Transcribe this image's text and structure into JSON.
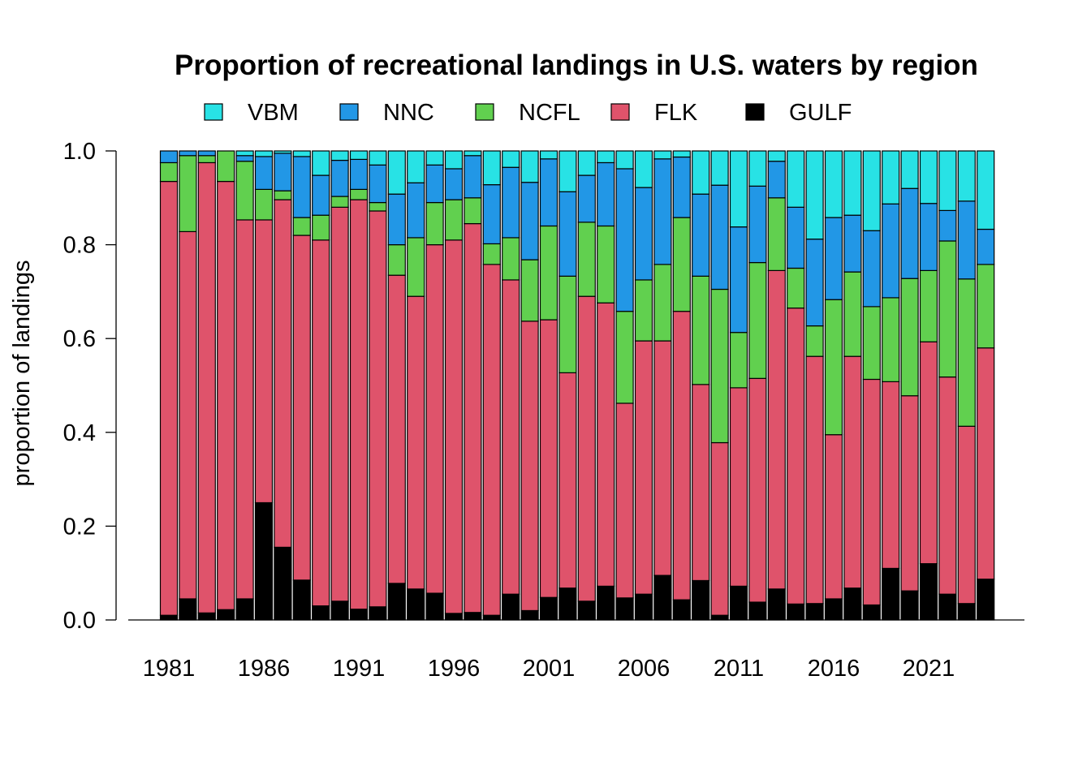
{
  "chart_data": {
    "type": "bar",
    "stacked": true,
    "title": "Proportion of recreational landings in U.S. waters by region",
    "xlabel": "",
    "ylabel": "proportion of landings",
    "ylim": [
      0,
      1
    ],
    "yticks": [
      "0.0",
      "0.2",
      "0.4",
      "0.6",
      "0.8",
      "1.0"
    ],
    "xtick_labels": [
      "1981",
      "1986",
      "1991",
      "1996",
      "2001",
      "2006",
      "2011",
      "2016",
      "2021"
    ],
    "legend_position": "top",
    "grid": false,
    "categories": [
      1981,
      1982,
      1983,
      1984,
      1985,
      1986,
      1987,
      1988,
      1989,
      1990,
      1991,
      1992,
      1993,
      1994,
      1995,
      1996,
      1997,
      1998,
      1999,
      2000,
      2001,
      2002,
      2003,
      2004,
      2005,
      2006,
      2007,
      2008,
      2009,
      2010,
      2011,
      2012,
      2013,
      2014,
      2015,
      2016,
      2017,
      2018,
      2019,
      2020,
      2021,
      2022,
      2023,
      2024
    ],
    "series": [
      {
        "name": "GULF",
        "color": "#000000",
        "values": [
          0.01,
          0.045,
          0.015,
          0.022,
          0.045,
          0.25,
          0.155,
          0.085,
          0.03,
          0.04,
          0.023,
          0.028,
          0.078,
          0.066,
          0.057,
          0.014,
          0.016,
          0.01,
          0.055,
          0.02,
          0.048,
          0.068,
          0.04,
          0.072,
          0.047,
          0.055,
          0.095,
          0.043,
          0.084,
          0.01,
          0.072,
          0.038,
          0.066,
          0.034,
          0.035,
          0.045,
          0.068,
          0.032,
          0.11,
          0.062,
          0.12,
          0.055,
          0.035,
          0.087
        ]
      },
      {
        "name": "FLK",
        "color": "#DF536B",
        "values": [
          0.925,
          0.783,
          0.96,
          0.913,
          0.808,
          0.603,
          0.741,
          0.735,
          0.78,
          0.84,
          0.873,
          0.844,
          0.657,
          0.624,
          0.743,
          0.796,
          0.829,
          0.748,
          0.67,
          0.617,
          0.592,
          0.459,
          0.65,
          0.604,
          0.415,
          0.54,
          0.5,
          0.615,
          0.418,
          0.368,
          0.423,
          0.477,
          0.679,
          0.631,
          0.527,
          0.35,
          0.494,
          0.481,
          0.398,
          0.416,
          0.473,
          0.463,
          0.378,
          0.493
        ]
      },
      {
        "name": "NCFL",
        "color": "#61D04F",
        "values": [
          0.04,
          0.162,
          0.015,
          0.065,
          0.125,
          0.065,
          0.019,
          0.038,
          0.053,
          0.023,
          0.022,
          0.018,
          0.065,
          0.125,
          0.09,
          0.086,
          0.055,
          0.044,
          0.09,
          0.131,
          0.2,
          0.206,
          0.158,
          0.164,
          0.196,
          0.13,
          0.163,
          0.2,
          0.231,
          0.327,
          0.118,
          0.247,
          0.155,
          0.085,
          0.065,
          0.288,
          0.18,
          0.155,
          0.179,
          0.25,
          0.152,
          0.29,
          0.314,
          0.178
        ]
      },
      {
        "name": "NNC",
        "color": "#2297E6",
        "values": [
          0.025,
          0.01,
          0.01,
          0.0,
          0.012,
          0.07,
          0.08,
          0.13,
          0.085,
          0.077,
          0.064,
          0.08,
          0.108,
          0.117,
          0.08,
          0.066,
          0.09,
          0.126,
          0.15,
          0.165,
          0.143,
          0.18,
          0.1,
          0.135,
          0.304,
          0.197,
          0.225,
          0.129,
          0.175,
          0.222,
          0.225,
          0.163,
          0.078,
          0.13,
          0.185,
          0.175,
          0.121,
          0.162,
          0.2,
          0.192,
          0.143,
          0.065,
          0.166,
          0.075
        ]
      },
      {
        "name": "VBM",
        "color": "#28E2E5",
        "values": [
          0.0,
          0.0,
          0.0,
          0.0,
          0.01,
          0.012,
          0.005,
          0.012,
          0.052,
          0.02,
          0.018,
          0.03,
          0.092,
          0.068,
          0.03,
          0.038,
          0.01,
          0.072,
          0.035,
          0.067,
          0.017,
          0.087,
          0.052,
          0.025,
          0.038,
          0.078,
          0.017,
          0.013,
          0.092,
          0.073,
          0.162,
          0.075,
          0.022,
          0.12,
          0.188,
          0.142,
          0.137,
          0.17,
          0.113,
          0.08,
          0.112,
          0.127,
          0.107,
          0.167
        ]
      }
    ],
    "legend_order": [
      "VBM",
      "NNC",
      "NCFL",
      "FLK",
      "GULF"
    ]
  }
}
